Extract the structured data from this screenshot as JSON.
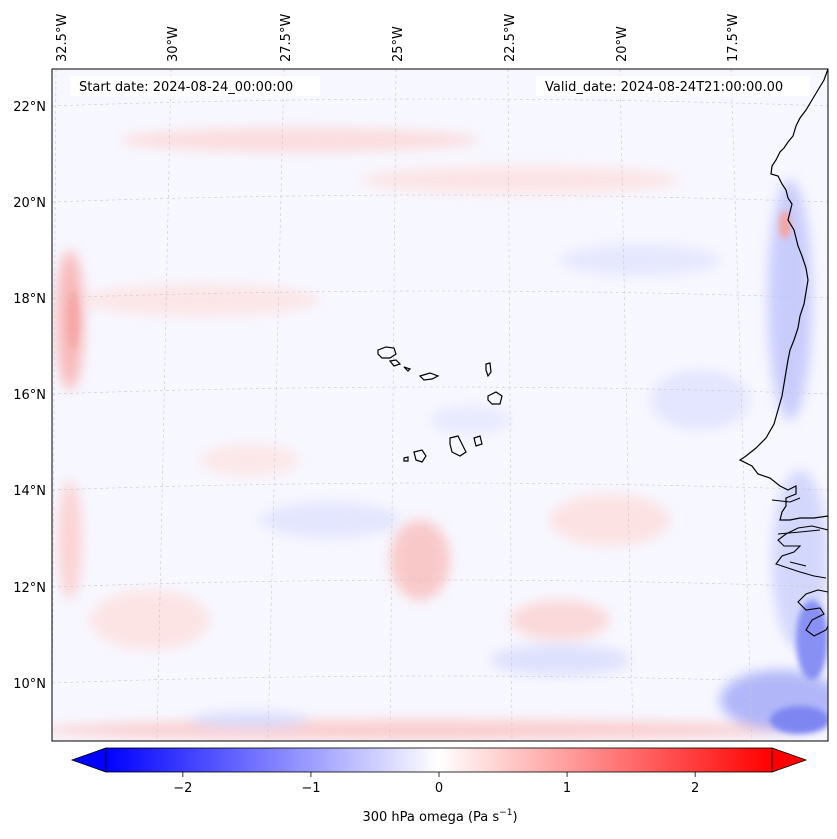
{
  "header": {
    "start_date": "Start date: 2024-08-24_00:00:00",
    "valid_date": "Valid_date: 2024-08-24T21:00:00.00"
  },
  "axes": {
    "lon_labels": [
      "32.5°W",
      "30°W",
      "27.5°W",
      "25°W",
      "22.5°W",
      "20°W",
      "17.5°W"
    ],
    "lat_labels": [
      "22°N",
      "20°N",
      "18°N",
      "16°N",
      "14°N",
      "12°N",
      "10°N"
    ]
  },
  "colorbar": {
    "ticks": [
      "−2",
      "−1",
      "0",
      "1",
      "2"
    ],
    "tick_values": [
      -2,
      -1,
      0,
      1,
      2
    ],
    "range": [
      -2.6,
      2.6
    ],
    "label": "300 hPa omega (Pa s",
    "label_exp": "−1",
    "label_end": ")",
    "color_low": "#0000ff",
    "color_mid": "#ffffff",
    "color_high": "#ff0000"
  },
  "map": {
    "land_outline_color": "#000000",
    "grid_color": "#b0b0b0"
  }
}
